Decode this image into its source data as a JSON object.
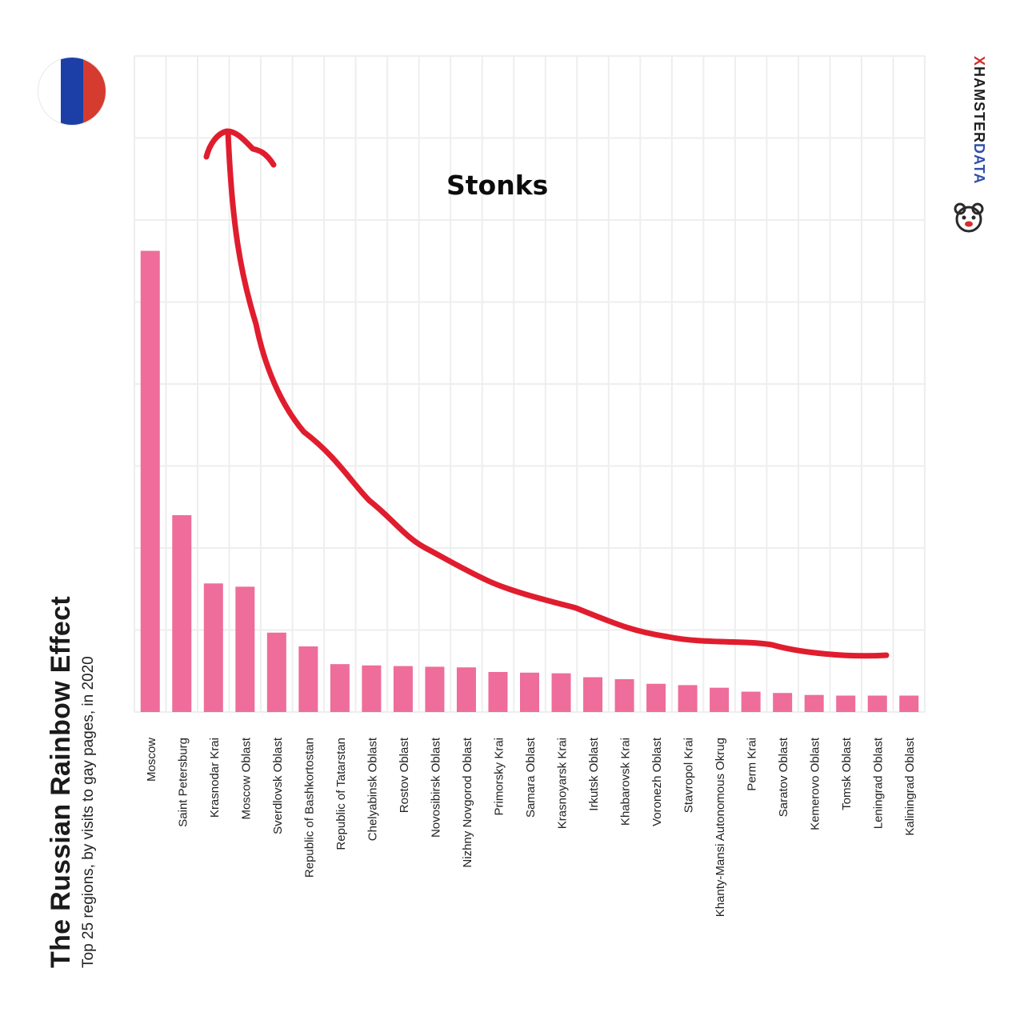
{
  "title": "The Russian Rainbow Effect",
  "subtitle": "Top 25 regions, by visits to gay pages, in 2020",
  "brand": {
    "part1": "X",
    "part2": "HAMSTER",
    "part3": "DATA"
  },
  "annotation": "Stonks",
  "colors": {
    "bar": "#ee6d9a",
    "grid": "#eeeeee",
    "curve": "#e01d2e",
    "flag": [
      "#ffffff",
      "#1b3fa6",
      "#d63b2f"
    ]
  },
  "icons": {
    "flag": "russia-flag-icon",
    "brand": "hamster-logo-icon"
  },
  "chart_data": {
    "type": "bar",
    "title": "The Russian Rainbow Effect",
    "subtitle": "Top 25 regions, by visits to gay pages, in 2020",
    "xlabel": "",
    "ylabel": "",
    "grid": true,
    "ylim": [
      0,
      100
    ],
    "y_ticks_labeled": false,
    "categories": [
      "Moscow",
      "Saint Petersburg",
      "Krasnodar Krai",
      "Moscow Oblast",
      "Sverdlovsk Oblast",
      "Republic of Bashkortostan",
      "Republic of Tatarstan",
      "Chelyabinsk Oblast",
      "Rostov Oblast",
      "Novosibirsk Oblast",
      "Nizhny Novgorod Oblast",
      "Primorsky Krai",
      "Samara Oblast",
      "Krasnoyarsk Krai",
      "Irkutsk Oblast",
      "Khabarovsk Krai",
      "Voronezh Oblast",
      "Stavropol Krai",
      "Khanty-Mansi Autonomous Okrug",
      "Perm Krai",
      "Saratov Oblast",
      "Kemerovo Oblast",
      "Tomsk Oblast",
      "Leningrad Oblast",
      "Kaliningrad Oblast"
    ],
    "values": [
      70.3,
      30.0,
      19.6,
      19.1,
      12.1,
      10.0,
      7.3,
      7.1,
      7.0,
      6.9,
      6.8,
      6.1,
      6.0,
      5.9,
      5.3,
      5.0,
      4.3,
      4.1,
      3.7,
      3.1,
      2.9,
      2.6,
      2.5,
      2.5,
      2.5
    ],
    "annotations": [
      {
        "text": "Stonks",
        "type": "freehand-arrow",
        "description": "red hand-drawn decay curve ending in an upward arrow"
      }
    ]
  }
}
